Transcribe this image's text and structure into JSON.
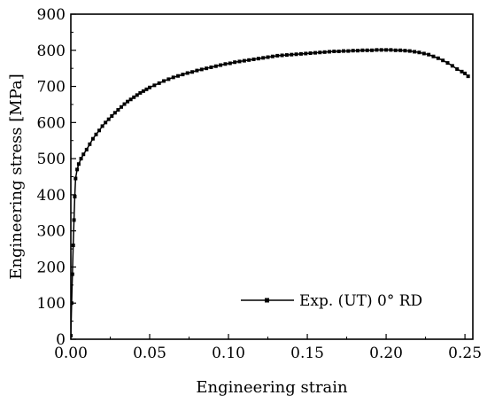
{
  "chart_data": {
    "type": "line",
    "title": "",
    "xlabel": "Engineering strain",
    "ylabel": "Engineering stress [MPa]",
    "xlim": [
      0,
      0.255
    ],
    "ylim": [
      0,
      900
    ],
    "x_ticks": [
      "0.00",
      "0.05",
      "0.10",
      "0.15",
      "0.20",
      "0.25"
    ],
    "y_ticks": [
      "0",
      "100",
      "200",
      "300",
      "400",
      "500",
      "600",
      "700",
      "800",
      "900"
    ],
    "grid": false,
    "legend_position": "bottom-right",
    "series": [
      {
        "name": "Exp.  (UT) 0° RD",
        "color": "#000000",
        "marker": "square",
        "x": [
          0.0,
          0.0005,
          0.001,
          0.0015,
          0.002,
          0.0025,
          0.003,
          0.004,
          0.005,
          0.0065,
          0.008,
          0.01,
          0.012,
          0.014,
          0.016,
          0.018,
          0.02,
          0.022,
          0.024,
          0.026,
          0.028,
          0.03,
          0.032,
          0.034,
          0.036,
          0.038,
          0.04,
          0.042,
          0.044,
          0.046,
          0.048,
          0.05,
          0.053,
          0.056,
          0.059,
          0.062,
          0.065,
          0.068,
          0.071,
          0.074,
          0.077,
          0.08,
          0.083,
          0.086,
          0.089,
          0.092,
          0.095,
          0.098,
          0.101,
          0.104,
          0.107,
          0.11,
          0.113,
          0.116,
          0.119,
          0.122,
          0.125,
          0.128,
          0.131,
          0.134,
          0.137,
          0.14,
          0.143,
          0.146,
          0.149,
          0.152,
          0.155,
          0.158,
          0.161,
          0.164,
          0.167,
          0.17,
          0.173,
          0.176,
          0.179,
          0.182,
          0.185,
          0.188,
          0.191,
          0.194,
          0.197,
          0.2,
          0.203,
          0.206,
          0.209,
          0.212,
          0.215,
          0.218,
          0.221,
          0.224,
          0.227,
          0.23,
          0.233,
          0.236,
          0.239,
          0.242,
          0.245,
          0.248,
          0.25,
          0.252
        ],
        "y": [
          10,
          100,
          180,
          260,
          330,
          395,
          445,
          470,
          485,
          500,
          512,
          525,
          540,
          555,
          567,
          578,
          590,
          600,
          609,
          618,
          627,
          635,
          643,
          651,
          658,
          664,
          670,
          676,
          682,
          687,
          692,
          697,
          703,
          709,
          715,
          720,
          725,
          729,
          733,
          737,
          740,
          744,
          747,
          750,
          753,
          756,
          759,
          762,
          764,
          767,
          769,
          771,
          773,
          775,
          777,
          779,
          781,
          783,
          785,
          786,
          787,
          788,
          789,
          790,
          791,
          792,
          793,
          794,
          795,
          796,
          797,
          797,
          798,
          798,
          799,
          799,
          800,
          800,
          800,
          801,
          801,
          801,
          801,
          800,
          800,
          799,
          798,
          796,
          794,
          791,
          788,
          783,
          778,
          772,
          765,
          757,
          748,
          741,
          736,
          728
        ]
      }
    ]
  }
}
